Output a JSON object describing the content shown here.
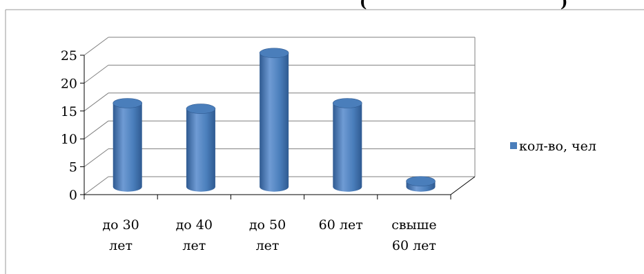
{
  "chart_data": {
    "type": "bar",
    "title_fragment": "(",
    "title_fragment_end": ")",
    "categories": [
      [
        "до 30",
        "лет"
      ],
      [
        "до 40",
        "лет"
      ],
      [
        "до 50",
        "лет"
      ],
      [
        "60 лет"
      ],
      [
        "свыше",
        "60 лет"
      ]
    ],
    "series": [
      {
        "name": "кол-во, чел",
        "values": [
          15,
          14,
          24,
          15,
          1
        ]
      }
    ],
    "ylim": [
      0,
      25
    ],
    "yticks": [
      0,
      5,
      10,
      15,
      20,
      25
    ],
    "grid": true,
    "legend_position": "right",
    "colors": {
      "bar_main": "#4a7ebb",
      "bar_dark": "#2f5a91",
      "bar_light": "#6f9bd4",
      "grid": "#7f7f7f",
      "frame": "#9a9a9a"
    },
    "style": "3d-cylinder"
  }
}
